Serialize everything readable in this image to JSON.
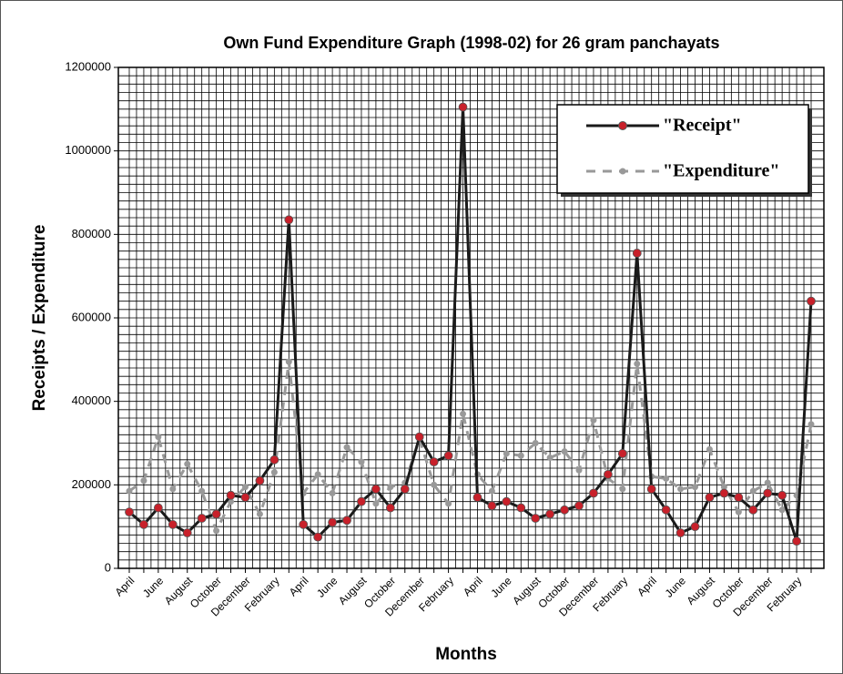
{
  "chart_data": {
    "type": "line",
    "title": "Own Fund Expenditure Graph (1998-02) for 26 gram panchayats",
    "x_label": "Months",
    "y_label": "Receipts / Expenditure",
    "categories": [
      "April",
      null,
      "June",
      null,
      "August",
      null,
      "October",
      null,
      "December",
      null,
      "February",
      null,
      "April",
      null,
      "June",
      null,
      "August",
      null,
      "October",
      null,
      "December",
      null,
      "February",
      null,
      "April",
      null,
      "June",
      null,
      "August",
      null,
      "October",
      null,
      "December",
      null,
      "February",
      null,
      "April",
      null,
      "June",
      null,
      "August",
      null,
      "October",
      null,
      "December",
      null,
      "February",
      null
    ],
    "series": [
      {
        "name": "\"Receipt\"",
        "color": "#1a1a1a",
        "marker_color": "#c8202a",
        "dashed": false,
        "values": [
          135000,
          105000,
          145000,
          105000,
          85000,
          120000,
          130000,
          175000,
          170000,
          210000,
          260000,
          835000,
          105000,
          75000,
          110000,
          115000,
          160000,
          190000,
          145000,
          190000,
          315000,
          255000,
          270000,
          1105000,
          170000,
          150000,
          160000,
          145000,
          120000,
          130000,
          140000,
          150000,
          180000,
          225000,
          275000,
          755000,
          190000,
          140000,
          85000,
          100000,
          170000,
          180000,
          170000,
          140000,
          180000,
          175000,
          65000,
          640000
        ]
      },
      {
        "name": "\"Expenditure\"",
        "color": "#999999",
        "marker_color": "#999999",
        "dashed": true,
        "values": [
          185000,
          210000,
          315000,
          190000,
          250000,
          185000,
          90000,
          160000,
          195000,
          130000,
          230000,
          495000,
          180000,
          225000,
          180000,
          290000,
          255000,
          155000,
          195000,
          205000,
          310000,
          200000,
          155000,
          370000,
          225000,
          185000,
          275000,
          270000,
          300000,
          265000,
          280000,
          235000,
          355000,
          215000,
          190000,
          490000,
          220000,
          215000,
          190000,
          195000,
          285000,
          195000,
          135000,
          185000,
          205000,
          140000,
          175000,
          345000
        ]
      }
    ],
    "ylim": [
      0,
      1200000
    ],
    "yticks": [
      0,
      200000,
      400000,
      600000,
      800000,
      1000000,
      1200000
    ],
    "grid": true,
    "grid_step": 20000,
    "legend": "upper right"
  }
}
